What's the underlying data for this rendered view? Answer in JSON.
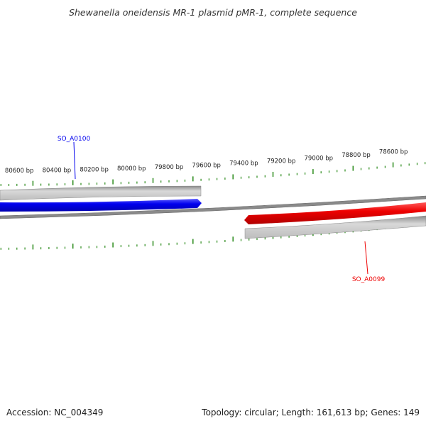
{
  "title": "Shewanella oneidensis MR-1 plasmid pMR-1, complete sequence",
  "footer": {
    "accession": "Accession: NC_004349",
    "summary": "Topology: circular; Length: 161,613 bp; Genes: 149"
  },
  "scale": {
    "labels": [
      "80600 bp",
      "80400 bp",
      "80200 bp",
      "80000 bp",
      "79800 bp",
      "79600 bp",
      "79400 bp",
      "79200 bp",
      "79000 bp",
      "78800 bp",
      "78600 bp"
    ]
  },
  "genes": [
    {
      "id": "SO_A0100",
      "strand": "forward",
      "color": "#0000ee"
    },
    {
      "id": "SO_A0099",
      "strand": "reverse",
      "color": "#ee0000"
    }
  ],
  "colors": {
    "scale_ticks": "#2a8a1a",
    "backbone": "#777777",
    "track": "#bdbdbd"
  }
}
